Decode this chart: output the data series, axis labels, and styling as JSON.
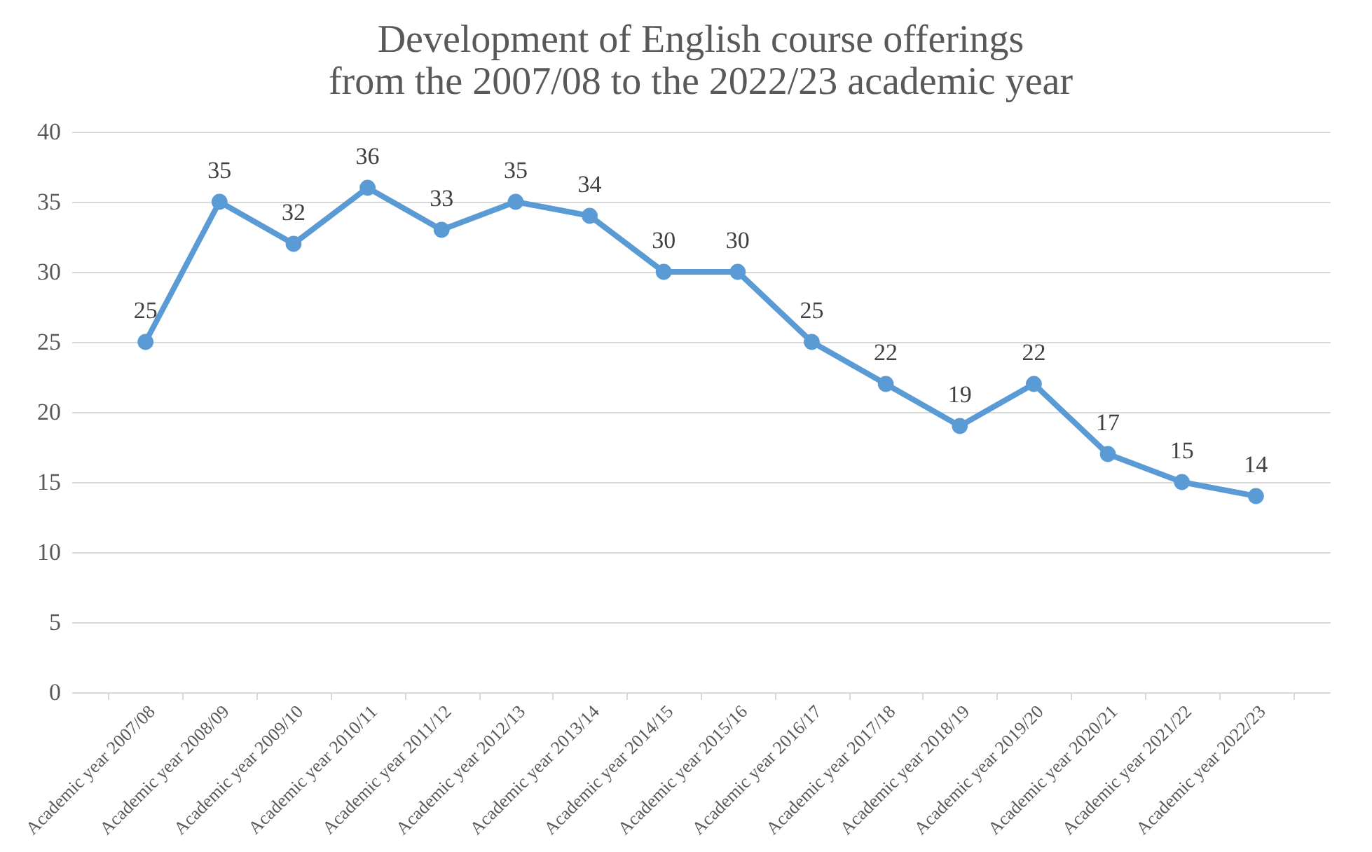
{
  "chart_data": {
    "type": "line",
    "title": "Development of English course offerings\nfrom the 2007/08 to the 2022/23 academic year",
    "categories": [
      "Academic year 2007/08",
      "Academic year 2008/09",
      "Academic year 2009/10",
      "Academic year 2010/11",
      "Academic year 2011/12",
      "Academic year 2012/13",
      "Academic year 2013/14",
      "Academic year 2014/15",
      "Academic year 2015/16",
      "Academic year 2016/17",
      "Academic year 2017/18",
      "Academic year 2018/19",
      "Academic year 2019/20",
      "Academic year 2020/21",
      "Academic year 2021/22",
      "Academic year 2022/23"
    ],
    "series": [
      {
        "color": "#5b9bd5",
        "values": [
          25,
          35,
          32,
          36,
          33,
          35,
          34,
          30,
          30,
          25,
          22,
          19,
          22,
          17,
          15,
          14
        ]
      }
    ],
    "ylim": [
      0,
      40
    ],
    "yticks": [
      0,
      5,
      10,
      15,
      20,
      25,
      30,
      35,
      40
    ],
    "grid": "y",
    "marker": "circle",
    "line_style": "solid",
    "data_labels": true
  }
}
